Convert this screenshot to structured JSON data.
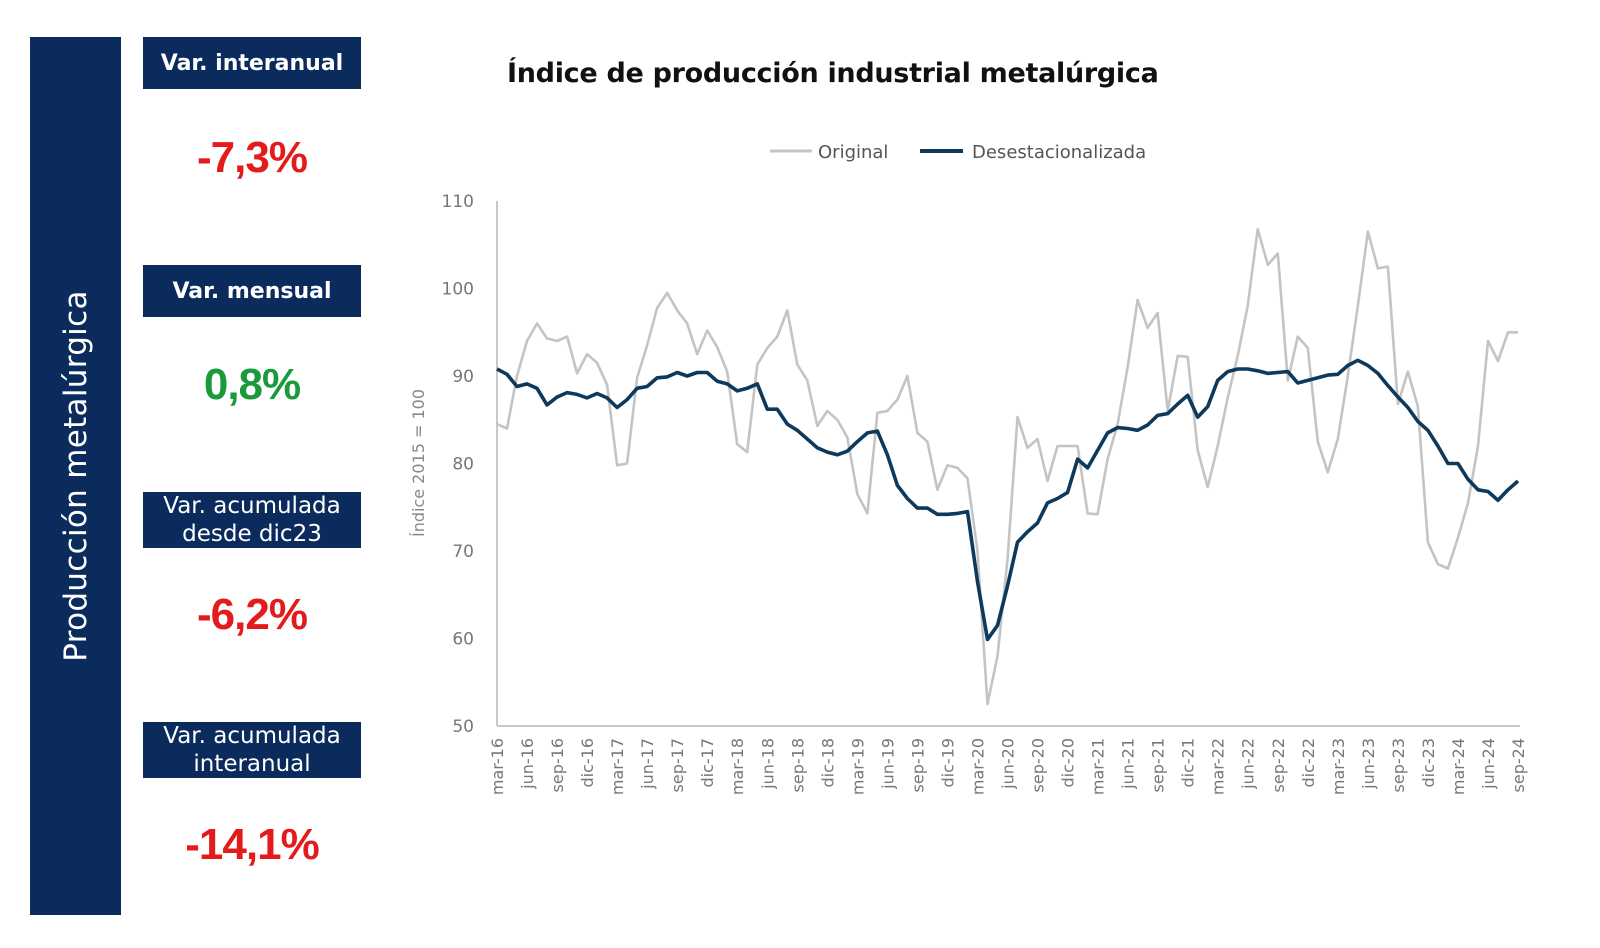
{
  "sidebar": {
    "title": "Producción metalúrgica",
    "color": "#0b2b5c"
  },
  "kpis": [
    {
      "label_lines": [
        "Var. interanual"
      ],
      "value": "-7,3%",
      "color": "#e31b1b"
    },
    {
      "label_lines": [
        "Var. mensual"
      ],
      "value": "0,8%",
      "color": "#1a9a3a"
    },
    {
      "label_lines": [
        "Var. acumulada",
        "desde dic23"
      ],
      "value": "-6,2%",
      "color": "#e31b1b"
    },
    {
      "label_lines": [
        "Var. acumulada",
        "interanual"
      ],
      "value": "-14,1%",
      "color": "#e31b1b"
    }
  ],
  "chart_data": {
    "type": "line",
    "title": "Índice de producción industrial metalúrgica",
    "xlabel": "",
    "ylabel": "Índice 2015 = 100",
    "ylim": [
      50,
      110
    ],
    "yticks": [
      50,
      60,
      70,
      80,
      90,
      100,
      110
    ],
    "grid": false,
    "legend_position": "top-center",
    "x_tick_labels": [
      "mar-16",
      "jun-16",
      "sep-16",
      "dic-16",
      "mar-17",
      "jun-17",
      "sep-17",
      "dic-17",
      "mar-18",
      "jun-18",
      "sep-18",
      "dic-18",
      "mar-19",
      "jun-19",
      "sep-19",
      "dic-19",
      "mar-20",
      "jun-20",
      "sep-20",
      "dic-20",
      "mar-21",
      "jun-21",
      "sep-21",
      "dic-21",
      "mar-22",
      "jun-22",
      "sep-22",
      "dic-22",
      "mar-23",
      "jun-23",
      "sep-23",
      "dic-23",
      "mar-24",
      "jun-24",
      "sep-24"
    ],
    "x_tick_every": 3,
    "series": [
      {
        "name": "Original",
        "color": "#c4c4c4",
        "values": [
          84.5,
          84.0,
          90.0,
          94.0,
          96.0,
          94.3,
          94.0,
          94.5,
          90.3,
          92.5,
          91.5,
          89.0,
          79.8,
          80.0,
          89.8,
          93.5,
          97.8,
          99.5,
          97.5,
          96.0,
          92.5,
          95.2,
          93.3,
          90.5,
          82.2,
          81.3,
          91.3,
          93.2,
          94.5,
          97.5,
          91.3,
          89.5,
          84.3,
          86.0,
          85.0,
          83.0,
          76.5,
          74.3,
          85.8,
          86.0,
          87.3,
          90.0,
          83.5,
          82.5,
          77.0,
          79.8,
          79.5,
          78.3,
          70.0,
          52.5,
          58.0,
          69.0,
          85.3,
          81.8,
          82.8,
          78.0,
          82.0,
          82.0,
          82.0,
          74.3,
          74.2,
          80.5,
          84.5,
          91.0,
          98.7,
          95.5,
          97.2,
          86.0,
          92.3,
          92.2,
          81.5,
          77.3,
          82.0,
          87.5,
          92.3,
          98.0,
          106.8,
          102.7,
          104.0,
          89.5,
          94.5,
          93.2,
          82.5,
          79.0,
          82.8,
          90.0,
          98.0,
          106.5,
          102.3,
          102.5,
          86.8,
          90.5,
          86.5,
          71.0,
          68.5,
          68.0,
          71.5,
          75.5,
          82.0,
          94.0,
          91.7,
          95.0,
          95.0
        ]
      },
      {
        "name": "Desestacionalizada",
        "color": "#0d3a5c",
        "values": [
          90.8,
          90.2,
          88.8,
          89.1,
          88.6,
          86.7,
          87.6,
          88.1,
          87.9,
          87.5,
          88.0,
          87.5,
          86.4,
          87.3,
          88.6,
          88.8,
          89.8,
          89.9,
          90.4,
          90.0,
          90.4,
          90.4,
          89.4,
          89.1,
          88.3,
          88.6,
          89.1,
          86.2,
          86.2,
          84.5,
          83.8,
          82.8,
          81.8,
          81.3,
          81.0,
          81.4,
          82.5,
          83.5,
          83.7,
          81.0,
          77.5,
          76.0,
          74.9,
          74.9,
          74.2,
          74.2,
          74.3,
          74.5,
          66.5,
          59.9,
          61.5,
          66.0,
          71.0,
          72.2,
          73.2,
          75.5,
          76.0,
          76.7,
          80.5,
          79.5,
          81.5,
          83.5,
          84.1,
          84.0,
          83.8,
          84.4,
          85.5,
          85.7,
          86.8,
          87.8,
          85.3,
          86.5,
          89.5,
          90.5,
          90.8,
          90.8,
          90.6,
          90.3,
          90.4,
          90.5,
          89.2,
          89.5,
          89.8,
          90.1,
          90.2,
          91.2,
          91.8,
          91.2,
          90.3,
          88.9,
          87.6,
          86.4,
          84.8,
          83.8,
          82.0,
          80.0,
          80.0,
          78.2,
          77.0,
          76.8,
          75.8,
          77.0,
          78.0
        ]
      }
    ]
  }
}
